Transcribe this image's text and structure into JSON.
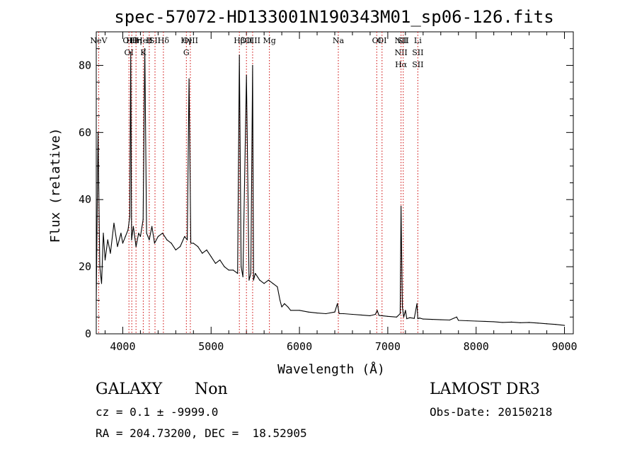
{
  "chart_data": {
    "type": "line",
    "title": "spec-57072-HD133001N190343M01_sp06-126.fits",
    "xlabel": "Wavelength (Å)",
    "ylabel": "Flux (relative)",
    "xlim": [
      3700,
      9100
    ],
    "ylim": [
      0,
      90
    ],
    "x_ticks": [
      4000,
      5000,
      6000,
      7000,
      8000,
      9000
    ],
    "y_ticks": [
      0,
      20,
      40,
      60,
      80
    ],
    "grid": false,
    "series": [
      {
        "color": "#000000",
        "x": [
          3700,
          3720,
          3740,
          3760,
          3780,
          3800,
          3830,
          3860,
          3900,
          3940,
          3980,
          4000,
          4030,
          4060,
          4080,
          4090,
          4100,
          4120,
          4150,
          4180,
          4200,
          4230,
          4250,
          4270,
          4300,
          4330,
          4360,
          4400,
          4450,
          4500,
          4550,
          4600,
          4650,
          4700,
          4730,
          4750,
          4770,
          4800,
          4850,
          4900,
          4950,
          5000,
          5050,
          5100,
          5150,
          5200,
          5250,
          5300,
          5320,
          5340,
          5360,
          5400,
          5430,
          5450,
          5470,
          5480,
          5500,
          5550,
          5600,
          5650,
          5700,
          5750,
          5780,
          5800,
          5830,
          5870,
          5900,
          6000,
          6100,
          6200,
          6300,
          6400,
          6430,
          6450,
          6500,
          6600,
          6700,
          6800,
          6860,
          6880,
          6900,
          7000,
          7100,
          7140,
          7150,
          7165,
          7180,
          7200,
          7215,
          7250,
          7300,
          7330,
          7340,
          7360,
          7400,
          7500,
          7600,
          7700,
          7780,
          7800,
          7900,
          8000,
          8100,
          8200,
          8300,
          8400,
          8500,
          8600,
          8700,
          8800,
          8900,
          9000
        ],
        "y": [
          10,
          60,
          20,
          15,
          30,
          22,
          28,
          24,
          33,
          26,
          30,
          27,
          29,
          31,
          35,
          84,
          28,
          32,
          26,
          30,
          29,
          34,
          85,
          30,
          28,
          32,
          27,
          29,
          30,
          28,
          27,
          25,
          26,
          29,
          28,
          76,
          27,
          27,
          26,
          24,
          25,
          23,
          21,
          22,
          20,
          19,
          19,
          18,
          83,
          20,
          17,
          77,
          16,
          18,
          80,
          16,
          18,
          16,
          15,
          16,
          15,
          14,
          10,
          8,
          9,
          8,
          7,
          7,
          6.5,
          6.2,
          6,
          6.5,
          9,
          6,
          6,
          5.8,
          5.6,
          5.4,
          5.8,
          7,
          5.5,
          5.2,
          5,
          6,
          38,
          8,
          5,
          7,
          4.5,
          4.8,
          4.6,
          9,
          4.5,
          4.7,
          4.4,
          4.3,
          4.2,
          4.1,
          5,
          4,
          3.9,
          3.8,
          3.7,
          3.6,
          3.4,
          3.5,
          3.3,
          3.4,
          3.2,
          3.0,
          2.8,
          2.5
        ]
      }
    ],
    "lines": [
      {
        "x": 3727,
        "labels": [
          "NeV"
        ]
      },
      {
        "x": 4070,
        "labels": [
          "OII",
          "OI"
        ]
      },
      {
        "x": 4102,
        "labels": [
          "Hθ"
        ]
      },
      {
        "x": 4150,
        "labels": [
          "Hη"
        ]
      },
      {
        "x": 4232,
        "labels": [
          "HeI",
          "K"
        ]
      },
      {
        "x": 4300,
        "labels": [
          "H"
        ]
      },
      {
        "x": 4365,
        "labels": [
          "SII"
        ]
      },
      {
        "x": 4460,
        "labels": [
          "Hδ"
        ]
      },
      {
        "x": 4720,
        "labels": [
          "Hγ",
          "G"
        ]
      },
      {
        "x": 4765,
        "labels": [
          "OIII"
        ]
      },
      {
        "x": 5320,
        "labels": [
          "Hβ"
        ]
      },
      {
        "x": 5400,
        "labels": [
          "OII"
        ]
      },
      {
        "x": 5470,
        "labels": [
          "OIII"
        ]
      },
      {
        "x": 5660,
        "labels": [
          "Mg"
        ]
      },
      {
        "x": 6440,
        "labels": [
          "Na"
        ]
      },
      {
        "x": 6875,
        "labels": [
          "OI"
        ]
      },
      {
        "x": 6935,
        "labels": [
          "OI"
        ]
      },
      {
        "x": 7150,
        "labels": [
          "NII",
          "NII",
          "Hα"
        ]
      },
      {
        "x": 7175,
        "labels": [
          "SII"
        ]
      },
      {
        "x": 7340,
        "labels": [
          "Li",
          "SII",
          "SII"
        ]
      }
    ]
  },
  "info": {
    "classification": "GALAXY",
    "subclass": "Non",
    "survey": "LAMOST DR3",
    "cz": "cz = 0.1 ± -9999.0",
    "obs_date": "Obs-Date: 20150218",
    "coords": "RA = 204.73200, DEC =  18.52905"
  }
}
